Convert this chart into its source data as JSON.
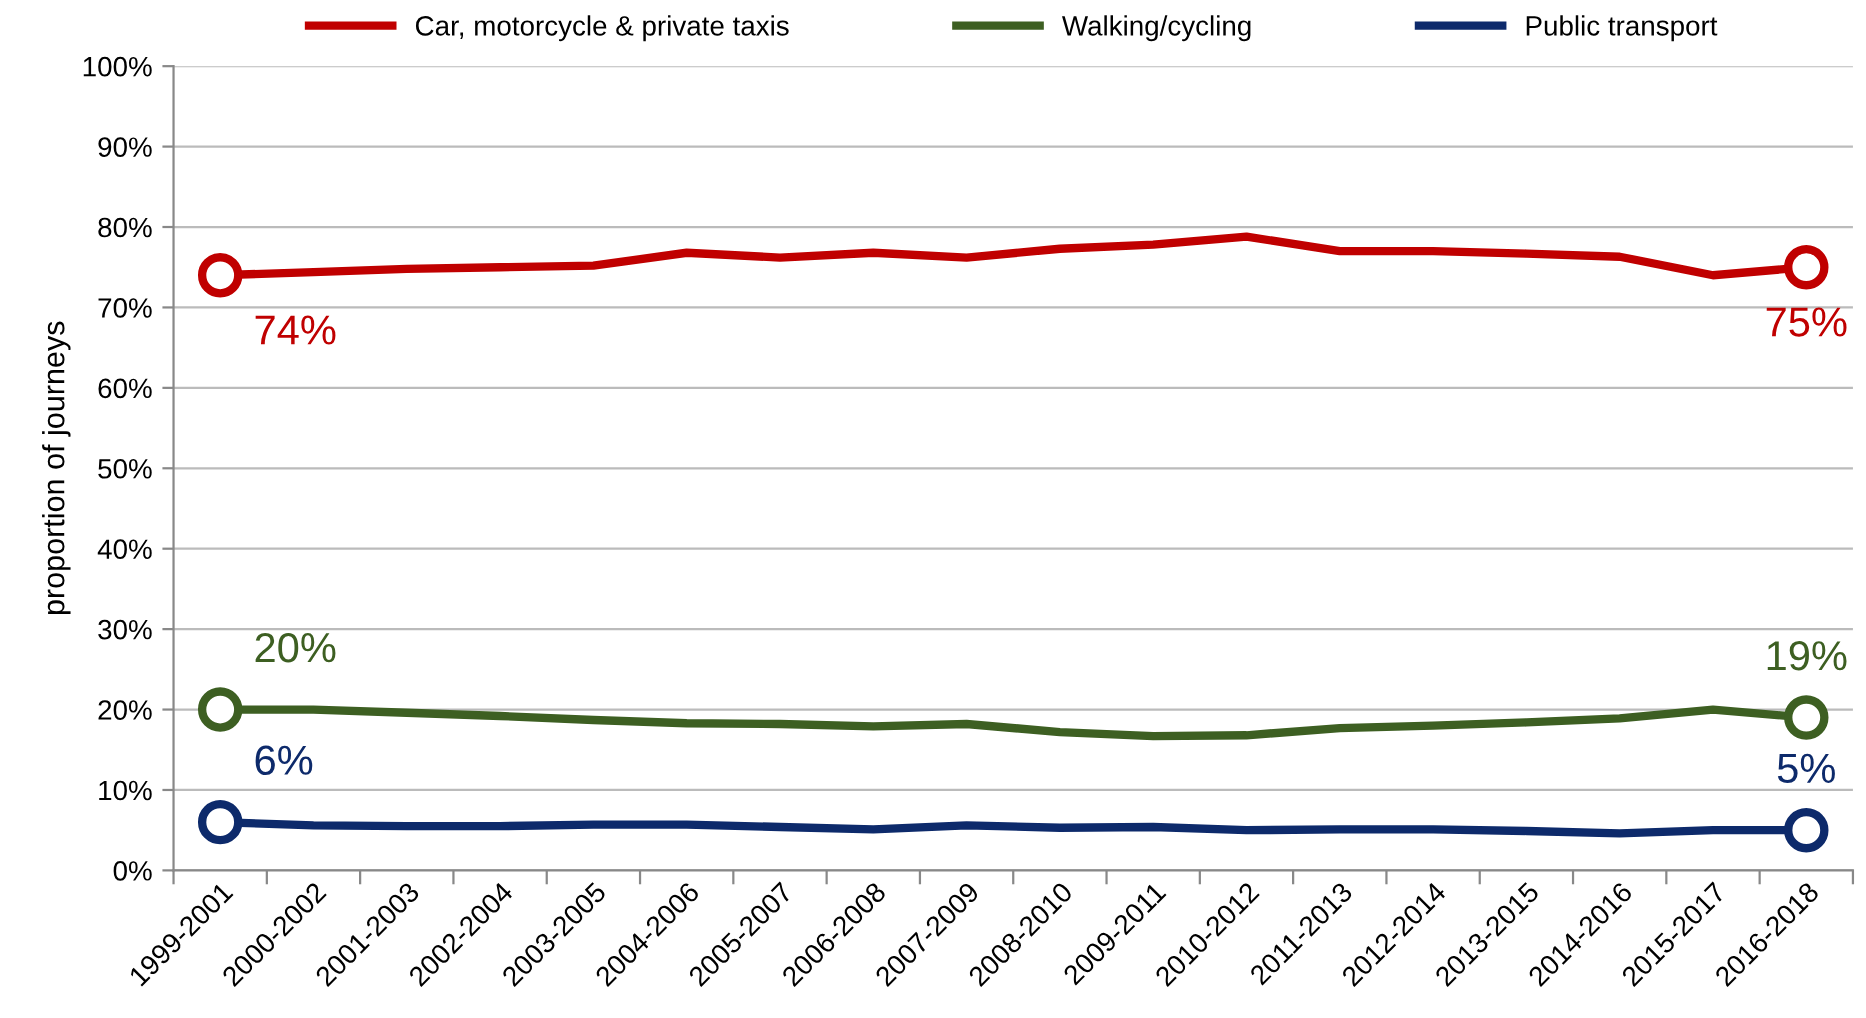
{
  "chart_data": {
    "type": "line",
    "ylabel": "proportion of journeys",
    "categories": [
      "1999-2001",
      "2000-2002",
      "2001-2003",
      "2002-2004",
      "2003-2005",
      "2004-2006",
      "2005-2007",
      "2006-2008",
      "2007-2009",
      "2008-2010",
      "2009-2011",
      "2010-2012",
      "2011-2013",
      "2012-2014",
      "2013-2015",
      "2014-2016",
      "2015-2017",
      "2016-2018"
    ],
    "series": [
      {
        "name": "Car, motorcycle & private taxis",
        "color": "#c00000",
        "values": [
          74,
          74.4,
          74.8,
          75,
          75.2,
          76.8,
          76.2,
          76.8,
          76.2,
          77.3,
          77.8,
          78.8,
          77,
          77,
          76.7,
          76.3,
          74,
          75
        ],
        "value_labels": [
          "74%",
          null,
          null,
          null,
          null,
          null,
          null,
          null,
          null,
          null,
          null,
          null,
          null,
          null,
          null,
          null,
          null,
          "75%"
        ]
      },
      {
        "name": "Walking/cycling",
        "color": "#3d5f22",
        "values": [
          20,
          20,
          19.6,
          19.2,
          18.7,
          18.3,
          18.2,
          17.9,
          18.2,
          17.2,
          16.7,
          16.8,
          17.7,
          18,
          18.4,
          18.9,
          20,
          19
        ],
        "value_labels": [
          "20%",
          null,
          null,
          null,
          null,
          null,
          null,
          null,
          null,
          null,
          null,
          null,
          null,
          null,
          null,
          null,
          null,
          "19%"
        ]
      },
      {
        "name": "Public transport",
        "color": "#0d2a6b",
        "values": [
          6,
          5.6,
          5.5,
          5.5,
          5.7,
          5.7,
          5.4,
          5.1,
          5.6,
          5.3,
          5.4,
          5.0,
          5.1,
          5.1,
          4.9,
          4.6,
          5.0,
          5.0
        ],
        "value_labels": [
          "6%",
          null,
          null,
          null,
          null,
          null,
          null,
          null,
          null,
          null,
          null,
          null,
          null,
          null,
          null,
          null,
          null,
          "5%"
        ]
      }
    ],
    "ylim": [
      0,
      100
    ],
    "yticks": [
      {
        "value": 0,
        "label": "0%"
      },
      {
        "value": 10,
        "label": "10%"
      },
      {
        "value": 20,
        "label": "20%"
      },
      {
        "value": 30,
        "label": "30%"
      },
      {
        "value": 40,
        "label": "40%"
      },
      {
        "value": 50,
        "label": "50%"
      },
      {
        "value": 60,
        "label": "60%"
      },
      {
        "value": 70,
        "label": "70%"
      },
      {
        "value": 80,
        "label": "80%"
      },
      {
        "value": 90,
        "label": "90%"
      },
      {
        "value": 100,
        "label": "100%"
      }
    ],
    "grid": "y",
    "legend": "top",
    "line_style": "solid"
  }
}
